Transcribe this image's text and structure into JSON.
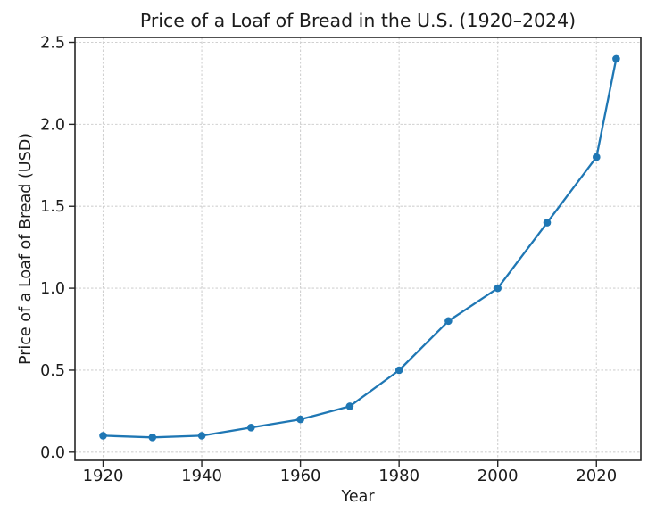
{
  "chart_data": {
    "type": "line",
    "title": "Price of a Loaf of Bread in the U.S. (1920–2024)",
    "xlabel": "Year",
    "ylabel": "Price of a Loaf of Bread (USD)",
    "x": [
      1920,
      1930,
      1940,
      1950,
      1960,
      1970,
      1980,
      1990,
      2000,
      2010,
      2020,
      2024
    ],
    "values": [
      0.1,
      0.09,
      0.1,
      0.15,
      0.2,
      0.28,
      0.5,
      0.8,
      1.0,
      1.4,
      1.8,
      2.4
    ],
    "series_name": "Price of a Loaf of Bread (USD)",
    "xticks": {
      "values": [
        1920,
        1940,
        1960,
        1980,
        2000,
        2020
      ],
      "labels": [
        "1920",
        "1940",
        "1960",
        "1980",
        "2000",
        "2020"
      ]
    },
    "yticks": {
      "values": [
        0.0,
        0.5,
        1.0,
        1.5,
        2.0,
        2.5
      ],
      "labels": [
        "0.0",
        "0.5",
        "1.0",
        "1.5",
        "2.0",
        "2.5"
      ]
    },
    "xlim": [
      1914.3,
      2029.0
    ],
    "ylim": [
      -0.05,
      2.53
    ],
    "grid": true,
    "legend": null,
    "marker": "o",
    "colors": {
      "line": "#1f77b4",
      "marker": "#1f77b4",
      "grid": "#d0d0d0",
      "spine": "#262626",
      "text": "#1c1c1c",
      "background": "#ffffff"
    }
  }
}
